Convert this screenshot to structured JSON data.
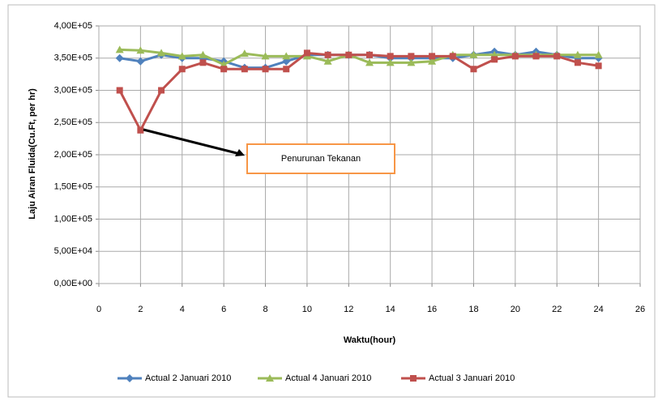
{
  "chart_data": {
    "type": "line",
    "x_label": "Waktu(hour)",
    "y_label": "Laju Airan Fluida(Cu.Ft, per hr)",
    "annotation": "Penurunan Tekanan",
    "xlim": [
      0,
      26
    ],
    "xticks": [
      0,
      2,
      4,
      6,
      8,
      10,
      12,
      14,
      16,
      18,
      20,
      22,
      24,
      26
    ],
    "ylim": [
      0,
      400000
    ],
    "yticks": [
      {
        "value": 0,
        "label": "0,00E+00"
      },
      {
        "value": 50000,
        "label": "5,00E+04"
      },
      {
        "value": 100000,
        "label": "1,00E+05"
      },
      {
        "value": 150000,
        "label": "1,50E+05"
      },
      {
        "value": 200000,
        "label": "2,00E+05"
      },
      {
        "value": 250000,
        "label": "2,50E+05"
      },
      {
        "value": 300000,
        "label": "3,00E+05"
      },
      {
        "value": 350000,
        "label": "3,50E+05"
      },
      {
        "value": 400000,
        "label": "4,00E+05"
      }
    ],
    "grid": true,
    "x": [
      1,
      2,
      3,
      4,
      5,
      6,
      7,
      8,
      9,
      10,
      11,
      12,
      13,
      14,
      15,
      16,
      17,
      18,
      19,
      20,
      21,
      22,
      23,
      24
    ],
    "series": [
      {
        "name": "Actual 2 Januari 2010",
        "color": "#4f81bd",
        "marker": "diamond",
        "values": [
          350000,
          345000,
          355000,
          350000,
          350000,
          345000,
          335000,
          335000,
          345000,
          355000,
          355000,
          355000,
          355000,
          350000,
          350000,
          350000,
          350000,
          355000,
          360000,
          355000,
          360000,
          355000,
          350000,
          350000
        ]
      },
      {
        "name": "Actual 4 Januari 2010",
        "color": "#9bbb59",
        "marker": "triangle",
        "values": [
          363000,
          362000,
          358000,
          353000,
          355000,
          340000,
          357000,
          353000,
          353000,
          353000,
          345000,
          355000,
          343000,
          343000,
          343000,
          345000,
          355000,
          355000,
          355000,
          355000,
          355000,
          355000,
          355000,
          355000
        ]
      },
      {
        "name": "Actual 3 Januari 2010",
        "color": "#c0504d",
        "marker": "square",
        "values": [
          300000,
          238000,
          300000,
          333000,
          343000,
          333000,
          333000,
          333000,
          333000,
          358000,
          355000,
          355000,
          355000,
          353000,
          353000,
          353000,
          353000,
          333000,
          348000,
          353000,
          353000,
          353000,
          343000,
          338000
        ]
      }
    ]
  }
}
